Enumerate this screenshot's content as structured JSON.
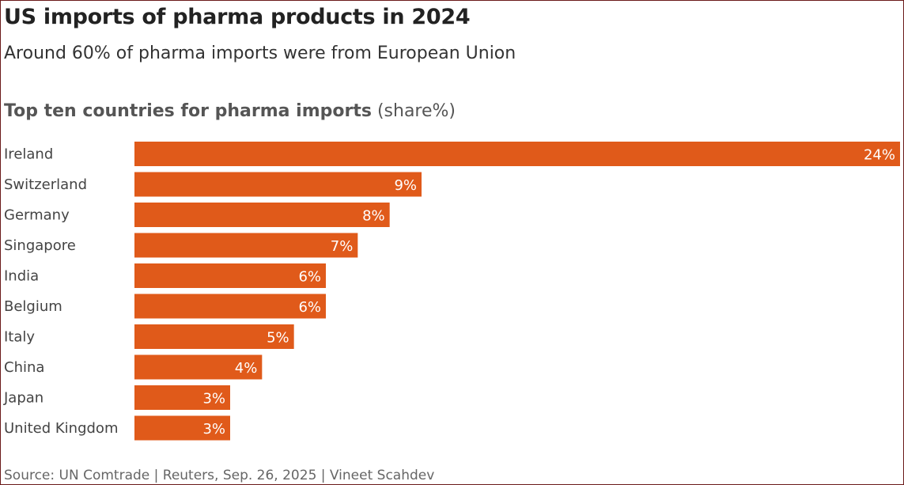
{
  "title": "US imports of pharma products in 2024",
  "subtitle": "Around 60% of pharma imports were from European Union",
  "chart_title_bold": "Top ten countries for pharma imports",
  "chart_title_unit": "(share%)",
  "source": "Source: UN Comtrade | Reuters, Sep. 26, 2025  | Vineet Scahdev",
  "colors": {
    "bar": "#e05a1a",
    "bar_label": "#ffffff",
    "category_label": "#444444",
    "title": "#222222"
  },
  "chart_data": {
    "type": "bar",
    "orientation": "horizontal",
    "categories": [
      "Ireland",
      "Switzerland",
      "Germany",
      "Singapore",
      "India",
      "Belgium",
      "Italy",
      "China",
      "Japan",
      "United Kingdom"
    ],
    "values": [
      24,
      9,
      8,
      7,
      6,
      6,
      5,
      4,
      3,
      3
    ],
    "data_labels": [
      "24%",
      "9%",
      "8%",
      "7%",
      "6%",
      "6%",
      "5%",
      "4%",
      "3%",
      "3%"
    ],
    "title": "Top ten countries for pharma imports (share%)",
    "xlabel": "",
    "ylabel": "",
    "xlim": [
      0,
      24
    ],
    "grid": false,
    "legend": "none"
  }
}
